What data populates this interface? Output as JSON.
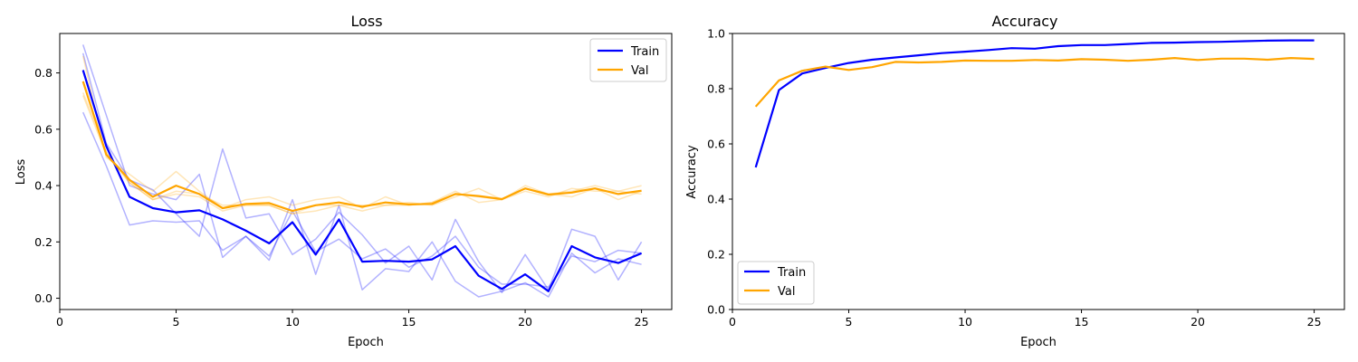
{
  "chart_data": [
    {
      "type": "line",
      "title": "Loss",
      "xlabel": "Epoch",
      "ylabel": "Loss",
      "xlim": [
        0,
        26.3
      ],
      "ylim": [
        -0.04,
        0.94
      ],
      "xticks": [
        0,
        5,
        10,
        15,
        20,
        25
      ],
      "yticks": [
        0.0,
        0.2,
        0.4,
        0.6,
        0.8
      ],
      "grid": false,
      "legend_position": "top-right",
      "x": [
        1,
        2,
        3,
        4,
        5,
        6,
        7,
        8,
        9,
        10,
        11,
        12,
        13,
        14,
        15,
        16,
        17,
        18,
        19,
        20,
        21,
        22,
        23,
        24,
        25
      ],
      "series": [
        {
          "name": "Train",
          "color": "#0000ff",
          "role": "mean",
          "values": [
            0.81,
            0.54,
            0.36,
            0.32,
            0.305,
            0.312,
            0.28,
            0.24,
            0.195,
            0.27,
            0.155,
            0.28,
            0.13,
            0.133,
            0.13,
            0.138,
            0.185,
            0.08,
            0.033,
            0.085,
            0.025,
            0.185,
            0.145,
            0.125,
            0.16
          ]
        },
        {
          "name": "Val",
          "color": "#ffa500",
          "role": "mean",
          "values": [
            0.77,
            0.51,
            0.42,
            0.36,
            0.4,
            0.37,
            0.32,
            0.335,
            0.338,
            0.31,
            0.33,
            0.34,
            0.325,
            0.34,
            0.333,
            0.335,
            0.37,
            0.363,
            0.352,
            0.39,
            0.368,
            0.375,
            0.39,
            0.37,
            0.382
          ]
        },
        {
          "name": "",
          "color": "#0000ff",
          "role": "run",
          "values": [
            0.9,
            0.65,
            0.4,
            0.37,
            0.35,
            0.44,
            0.145,
            0.22,
            0.135,
            0.35,
            0.085,
            0.33,
            0.03,
            0.105,
            0.095,
            0.2,
            0.06,
            0.005,
            0.025,
            0.055,
            0.005,
            0.16,
            0.09,
            0.14,
            0.12
          ]
        },
        {
          "name": "",
          "color": "#0000ff",
          "role": "run",
          "values": [
            0.87,
            0.55,
            0.42,
            0.385,
            0.3,
            0.22,
            0.53,
            0.285,
            0.3,
            0.155,
            0.21,
            0.305,
            0.225,
            0.125,
            0.185,
            0.065,
            0.28,
            0.13,
            0.02,
            0.155,
            0.03,
            0.245,
            0.22,
            0.065,
            0.2
          ]
        },
        {
          "name": "",
          "color": "#0000ff",
          "role": "run",
          "values": [
            0.66,
            0.47,
            0.26,
            0.275,
            0.27,
            0.275,
            0.17,
            0.22,
            0.15,
            0.31,
            0.165,
            0.21,
            0.14,
            0.175,
            0.11,
            0.15,
            0.22,
            0.11,
            0.05,
            0.05,
            0.04,
            0.15,
            0.13,
            0.17,
            0.16
          ]
        },
        {
          "name": "",
          "color": "#ffa500",
          "role": "run",
          "values": [
            0.86,
            0.5,
            0.44,
            0.38,
            0.45,
            0.38,
            0.32,
            0.35,
            0.36,
            0.33,
            0.35,
            0.36,
            0.32,
            0.36,
            0.33,
            0.34,
            0.38,
            0.34,
            0.35,
            0.4,
            0.37,
            0.36,
            0.39,
            0.35,
            0.38
          ]
        },
        {
          "name": "",
          "color": "#ffa500",
          "role": "run",
          "values": [
            0.73,
            0.52,
            0.41,
            0.35,
            0.38,
            0.37,
            0.33,
            0.33,
            0.33,
            0.3,
            0.33,
            0.33,
            0.31,
            0.33,
            0.34,
            0.33,
            0.36,
            0.39,
            0.35,
            0.38,
            0.36,
            0.39,
            0.38,
            0.38,
            0.4
          ]
        },
        {
          "name": "",
          "color": "#ffa500",
          "role": "run",
          "values": [
            0.72,
            0.51,
            0.41,
            0.35,
            0.37,
            0.36,
            0.31,
            0.33,
            0.33,
            0.3,
            0.31,
            0.33,
            0.33,
            0.33,
            0.33,
            0.34,
            0.37,
            0.36,
            0.35,
            0.39,
            0.37,
            0.38,
            0.4,
            0.38,
            0.37
          ]
        }
      ]
    },
    {
      "type": "line",
      "title": "Accuracy",
      "xlabel": "Epoch",
      "ylabel": "Accuracy",
      "xlim": [
        0,
        26.3
      ],
      "ylim": [
        0.0,
        1.0
      ],
      "xticks": [
        0,
        5,
        10,
        15,
        20,
        25
      ],
      "yticks": [
        0.0,
        0.2,
        0.4,
        0.6,
        0.8,
        1.0
      ],
      "grid": false,
      "legend_position": "bottom-left",
      "x": [
        1,
        2,
        3,
        4,
        5,
        6,
        7,
        8,
        9,
        10,
        11,
        12,
        13,
        14,
        15,
        16,
        17,
        18,
        19,
        20,
        21,
        22,
        23,
        24,
        25
      ],
      "series": [
        {
          "name": "Train",
          "color": "#0000ff",
          "role": "mean",
          "values": [
            0.515,
            0.795,
            0.855,
            0.875,
            0.893,
            0.905,
            0.913,
            0.921,
            0.929,
            0.934,
            0.94,
            0.947,
            0.945,
            0.954,
            0.958,
            0.958,
            0.962,
            0.966,
            0.967,
            0.969,
            0.97,
            0.972,
            0.974,
            0.975,
            0.975
          ]
        },
        {
          "name": "Val",
          "color": "#ffa500",
          "role": "mean",
          "values": [
            0.735,
            0.83,
            0.865,
            0.88,
            0.868,
            0.878,
            0.897,
            0.895,
            0.897,
            0.902,
            0.901,
            0.901,
            0.904,
            0.902,
            0.907,
            0.905,
            0.901,
            0.905,
            0.911,
            0.904,
            0.909,
            0.909,
            0.905,
            0.911,
            0.908
          ]
        }
      ]
    }
  ],
  "colors": {
    "train": "#0000ff",
    "val": "#ffa500",
    "axes": "#000000"
  }
}
